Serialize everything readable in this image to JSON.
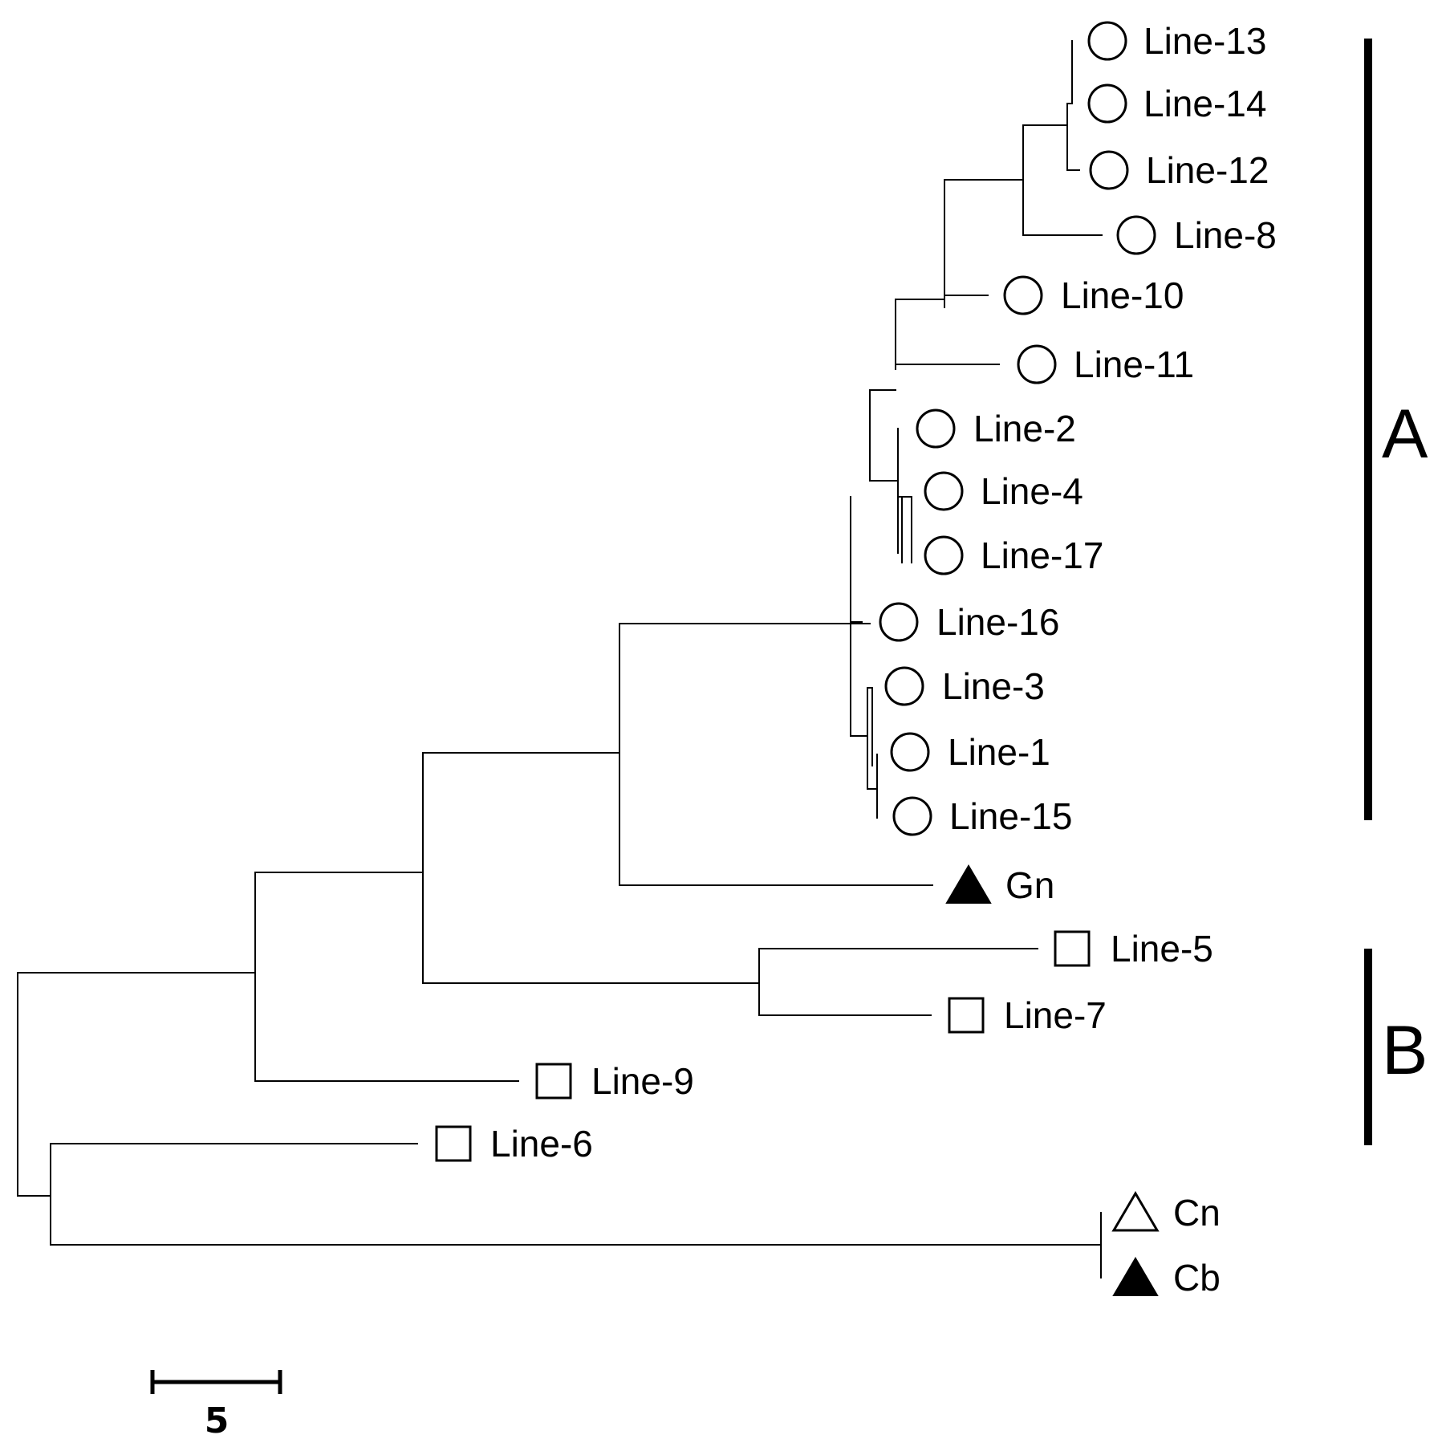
{
  "tree": {
    "leaves": [
      {
        "id": "L13",
        "label": "Line-13",
        "marker": "circle-open"
      },
      {
        "id": "L14",
        "label": "Line-14",
        "marker": "circle-open"
      },
      {
        "id": "L12",
        "label": "Line-12",
        "marker": "circle-open"
      },
      {
        "id": "L8",
        "label": "Line-8",
        "marker": "circle-open"
      },
      {
        "id": "L10",
        "label": "Line-10",
        "marker": "circle-open"
      },
      {
        "id": "L11",
        "label": "Line-11",
        "marker": "circle-open"
      },
      {
        "id": "L2",
        "label": "Line-2",
        "marker": "circle-open"
      },
      {
        "id": "L4",
        "label": "Line-4",
        "marker": "circle-open"
      },
      {
        "id": "L17",
        "label": "Line-17",
        "marker": "circle-open"
      },
      {
        "id": "L16",
        "label": "Line-16",
        "marker": "circle-open"
      },
      {
        "id": "L3",
        "label": "Line-3",
        "marker": "circle-open"
      },
      {
        "id": "L1",
        "label": "Line-1",
        "marker": "circle-open"
      },
      {
        "id": "L15",
        "label": "Line-15",
        "marker": "circle-open"
      },
      {
        "id": "Gn",
        "label": "Gn",
        "marker": "triangle-filled"
      },
      {
        "id": "L5",
        "label": "Line-5",
        "marker": "square-open"
      },
      {
        "id": "L7",
        "label": "Line-7",
        "marker": "square-open"
      },
      {
        "id": "L9",
        "label": "Line-9",
        "marker": "square-open"
      },
      {
        "id": "L6",
        "label": "Line-6",
        "marker": "square-open"
      },
      {
        "id": "Cn",
        "label": "Cn",
        "marker": "triangle-open"
      },
      {
        "id": "Cb",
        "label": "Cb",
        "marker": "triangle-filled"
      }
    ],
    "clades": [
      {
        "label": "A"
      },
      {
        "label": "B"
      }
    ],
    "scale_bar": {
      "value": 5,
      "label": "5"
    }
  }
}
